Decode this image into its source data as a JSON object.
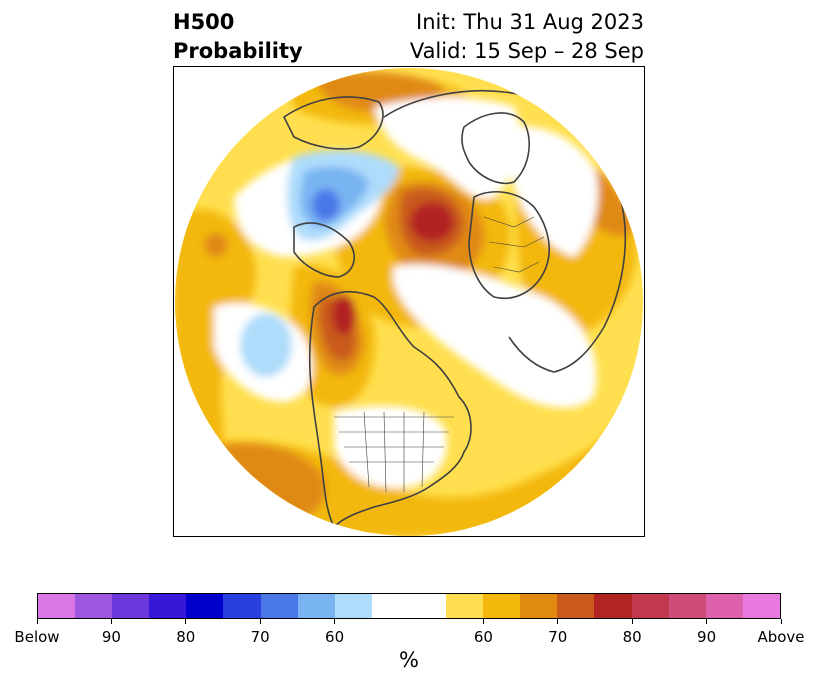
{
  "title": {
    "variable": "H500",
    "subtitle": "Probability",
    "init": "Init: Thu 31 Aug 2023",
    "valid": "Valid: 15 Sep – 28 Sep"
  },
  "colorbar": {
    "units": "%",
    "colors": [
      "#d977e6",
      "#9d57e0",
      "#6c37dc",
      "#3717d8",
      "#0000cc",
      "#2a3fe0",
      "#4b78e9",
      "#78b4f2",
      "#aedcfb",
      "#ffffff",
      "#ffdf4f",
      "#f3b80c",
      "#e08a12",
      "#c95a1b",
      "#b22424",
      "#c2384e",
      "#cf4c7a",
      "#dd60ad",
      "#e879de"
    ],
    "tick_labels": [
      "Below",
      "90",
      "80",
      "70",
      "60",
      "60",
      "70",
      "80",
      "90",
      "Above"
    ]
  },
  "map": {
    "projection": "north-polar-stereographic",
    "region": "Northern Hemisphere",
    "features": [
      {
        "label": "above-normal probability",
        "color": "#ffdf4f"
      },
      {
        "label": "above-normal probability",
        "color": "#f3b80c"
      },
      {
        "label": "above-normal probability",
        "color": "#e08a12"
      },
      {
        "label": "above-normal probability",
        "color": "#c95a1b"
      },
      {
        "label": "above-normal probability",
        "color": "#b22424"
      },
      {
        "label": "below-normal probability",
        "color": "#aedcfb"
      },
      {
        "label": "below-normal probability",
        "color": "#78b4f2"
      },
      {
        "label": "below-normal probability",
        "color": "#4b78e9"
      }
    ]
  }
}
